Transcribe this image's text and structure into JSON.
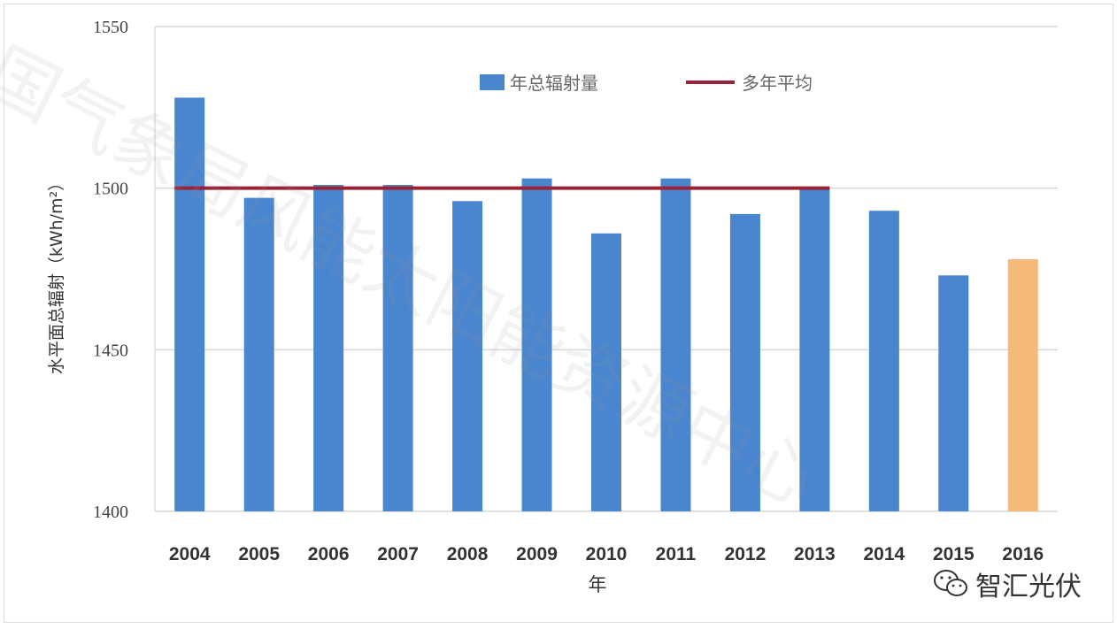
{
  "chart_data": {
    "type": "bar",
    "title": "",
    "xlabel": "年",
    "ylabel": "水平面总辐射（kWh/m²）",
    "ylim": [
      1400,
      1550
    ],
    "yticks": [
      1400,
      1450,
      1500,
      1550
    ],
    "grid": true,
    "legend_placement": "top",
    "categories": [
      "2004",
      "2005",
      "2006",
      "2007",
      "2008",
      "2009",
      "2010",
      "2011",
      "2012",
      "2013",
      "2014",
      "2015",
      "2016"
    ],
    "series": [
      {
        "name": "年总辐射量",
        "type": "bar",
        "color": "#4a86cf",
        "highlight_color": "#f5b97a",
        "highlight_category": "2016",
        "values": [
          1528,
          1497,
          1501,
          1501,
          1496,
          1503,
          1486,
          1503,
          1492,
          1500,
          1493,
          1473,
          1478
        ]
      },
      {
        "name": "多年平均",
        "type": "line",
        "color": "#9b2335",
        "value": 1500,
        "from": "2004",
        "to": "2013"
      }
    ]
  },
  "watermark": "国气象局风能太阳能资源中心",
  "brand": {
    "icon": "wechat-icon",
    "text": "智汇光伏"
  }
}
